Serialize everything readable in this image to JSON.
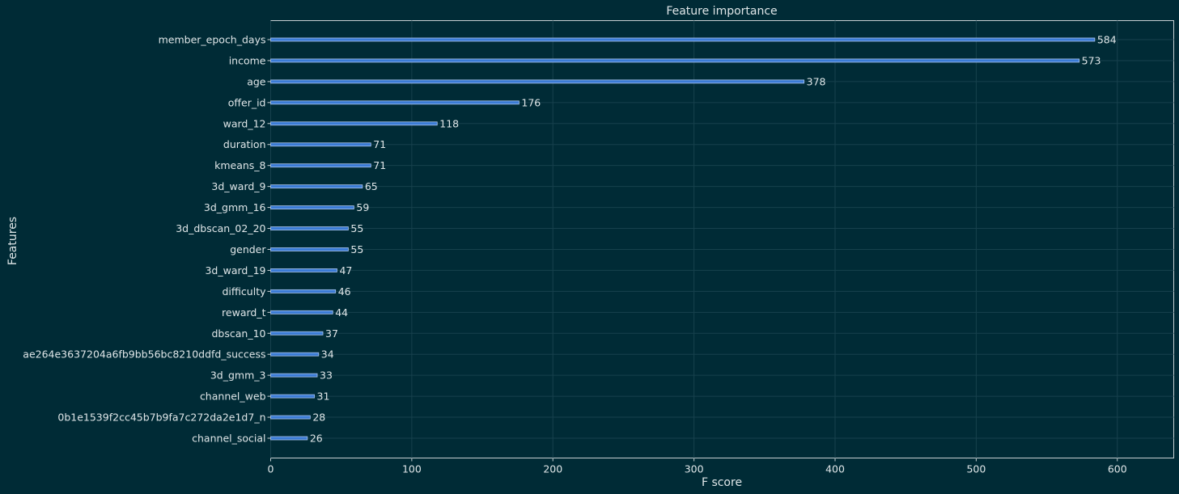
{
  "chart_data": {
    "type": "bar",
    "orientation": "horizontal",
    "title": "Feature importance",
    "xlabel": "F score",
    "ylabel": "Features",
    "xlim": [
      0,
      640
    ],
    "xticks": [
      0,
      100,
      200,
      300,
      400,
      500,
      600
    ],
    "grid": true,
    "categories": [
      "member_epoch_days",
      "income",
      "age",
      "offer_id",
      "ward_12",
      "duration",
      "kmeans_8",
      "3d_ward_9",
      "3d_gmm_16",
      "3d_dbscan_02_20",
      "gender",
      "3d_ward_19",
      "difficulty",
      "reward_t",
      "dbscan_10",
      "ae264e3637204a6fb9bb56bc8210ddfd_success",
      "3d_gmm_3",
      "channel_web",
      "0b1e1539f2cc45b7b9fa7c272da2e1d7_n",
      "channel_social"
    ],
    "values": [
      584,
      573,
      378,
      176,
      118,
      71,
      71,
      65,
      59,
      55,
      55,
      47,
      46,
      44,
      37,
      34,
      33,
      31,
      28,
      26
    ],
    "colors": {
      "background": "#002b36",
      "bar": "#3a7bd5",
      "grid": "#17414d",
      "text": "#dfe6e8"
    }
  }
}
